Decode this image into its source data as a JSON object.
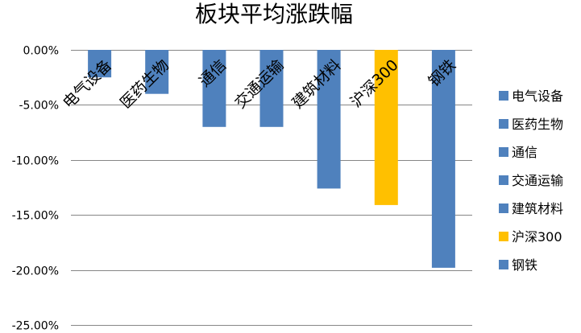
{
  "chart_data": {
    "type": "bar",
    "title": "板块平均涨跌幅",
    "categories": [
      "电气设备",
      "医药生物",
      "通信",
      "交通运输",
      "建筑材料",
      "沪深300",
      "钢铁"
    ],
    "values": [
      -2.5,
      -4.0,
      -7.0,
      -7.0,
      -12.6,
      -14.1,
      -19.8
    ],
    "ylim": [
      -25,
      0
    ],
    "yticks": [
      "0.00%",
      "-5.00%",
      "-10.00%",
      "-15.00%",
      "-20.00%",
      "-25.00%"
    ],
    "ytick_values": [
      0,
      -5,
      -10,
      -15,
      -20,
      -25
    ],
    "grid": true,
    "legend_position": "right",
    "colors": [
      "#4F81BD",
      "#4F81BD",
      "#4F81BD",
      "#4F81BD",
      "#4F81BD",
      "#FFC000",
      "#4F81BD"
    ],
    "legend": [
      "电气设备",
      "医药生物",
      "通信",
      "交通运输",
      "建筑材料",
      "沪深300",
      "钢铁"
    ]
  },
  "colors": {
    "bar": "#4F81BD",
    "highlight": "#FFC000",
    "grid": "#868686",
    "text": "#000000"
  }
}
